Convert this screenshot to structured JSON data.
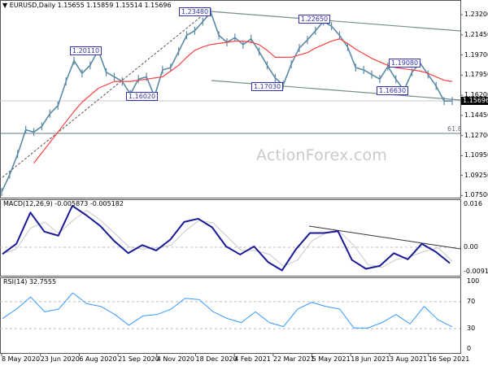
{
  "header": {
    "symbol": "EURUSD,Daily",
    "open": "1.15655",
    "high": "1.15859",
    "low": "1.15514",
    "close": "1.15696"
  },
  "watermark": "ActionForex.com",
  "current_price_label": "1.15696",
  "fib_label": "61.8",
  "annotations": {
    "a1": "1.20110",
    "a2": "1.16020",
    "a3": "1.23480",
    "a4": "1.17030",
    "a5": "1.22650",
    "a6": "1.19080",
    "a7": "1.16630"
  },
  "macd_label": "MACD(12,26,9) -0.005873 -0.005182",
  "rsi_label": "RSI(14) 32.7555",
  "colors": {
    "price": "#5b8aa6",
    "ma": "#ff4040",
    "macd": "#1a1a99",
    "signal": "#c8c8c8",
    "rsi": "#3399ff",
    "annotation": "#3333aa"
  },
  "chart_data": [
    {
      "type": "line",
      "title": "EURUSD,Daily",
      "ylim": [
        1.075,
        1.232
      ],
      "y_ticks": [
        "1.23200",
        "1.21450",
        "1.19700",
        "1.17950",
        "1.16200",
        "1.14450",
        "1.12700",
        "1.10950",
        "1.09250",
        "1.07500"
      ],
      "x_ticks": [
        "8 May 2020",
        "23 Jun 2020",
        "6 Aug 2020",
        "21 Sep 2020",
        "4 Nov 2020",
        "18 Dec 2020",
        "4 Feb 2021",
        "22 Mar 2021",
        "5 May 2021",
        "18 Jun 2021",
        "3 Aug 2021",
        "16 Sep 2021"
      ],
      "price": [
        1.078,
        1.093,
        1.111,
        1.132,
        1.13,
        1.135,
        1.146,
        1.153,
        1.174,
        1.192,
        1.181,
        1.188,
        1.201,
        1.182,
        1.178,
        1.174,
        1.163,
        1.176,
        1.178,
        1.161,
        1.184,
        1.186,
        1.2,
        1.214,
        1.218,
        1.226,
        1.234,
        1.214,
        1.208,
        1.212,
        1.206,
        1.211,
        1.2,
        1.188,
        1.177,
        1.171,
        1.189,
        1.203,
        1.21,
        1.218,
        1.226,
        1.222,
        1.214,
        1.204,
        1.186,
        1.184,
        1.18,
        1.176,
        1.187,
        1.176,
        1.1663,
        1.182,
        1.19,
        1.18,
        1.17,
        1.157,
        1.157
      ],
      "moving_average": [
        null,
        null,
        null,
        null,
        1.103,
        1.112,
        1.121,
        1.13,
        1.139,
        1.148,
        1.156,
        1.162,
        1.168,
        1.171,
        1.174,
        1.174,
        1.174,
        1.175,
        1.176,
        1.177,
        1.178,
        1.183,
        1.188,
        1.195,
        1.201,
        1.204,
        1.206,
        1.207,
        1.208,
        1.209,
        1.209,
        1.208,
        1.206,
        1.201,
        1.195,
        1.195,
        1.195,
        1.197,
        1.199,
        1.203,
        1.206,
        1.209,
        1.211,
        1.207,
        1.202,
        1.198,
        1.194,
        1.191,
        1.188,
        1.186,
        1.185,
        1.184,
        1.183,
        1.181,
        1.178,
        1.175,
        1.174
      ],
      "fib_level": "61.8"
    },
    {
      "type": "line",
      "title": "MACD(12,26,9) -0.005873 -0.005182",
      "ylim": [
        -0.009116,
        0.016
      ],
      "y_ticks": [
        "0.016",
        "0.00",
        "-0.009116"
      ],
      "macd": [
        -0.0025,
        0.0013,
        0.0129,
        0.0058,
        0.0043,
        0.0154,
        0.0119,
        0.0079,
        0.0023,
        -0.0022,
        0.0008,
        -0.0012,
        0.0028,
        0.0094,
        0.0106,
        0.0074,
        0.0003,
        -0.0027,
        0.0003,
        -0.0055,
        -0.0086,
        -0.0007,
        0.0053,
        0.0053,
        0.006,
        -0.0047,
        -0.008,
        -0.0069,
        -0.0022,
        -0.0045,
        0.0013,
        -0.0017,
        -0.0059
      ],
      "signal": [
        -0.0025,
        -0.0006,
        0.0071,
        0.0094,
        0.0051,
        0.0099,
        0.0137,
        0.0099,
        0.0051,
        0.0001,
        -0.0007,
        -0.0002,
        0.0008,
        0.0061,
        0.01,
        0.009,
        0.0039,
        -0.0012,
        -0.0012,
        -0.0026,
        -0.0071,
        -0.0047,
        0.0023,
        0.0053,
        0.0057,
        0.0007,
        -0.0064,
        -0.0075,
        -0.0046,
        -0.0034,
        -0.0016,
        -0.0002,
        -0.0052
      ]
    },
    {
      "type": "line",
      "title": "RSI(14) 32.7555",
      "ylim": [
        0,
        100
      ],
      "y_ticks": [
        "100",
        "70",
        "30",
        "0"
      ],
      "rsi": [
        45,
        59,
        77,
        55,
        59,
        83,
        67,
        63,
        51,
        35,
        49,
        51,
        59,
        75,
        73,
        55,
        45,
        39,
        55,
        39,
        33,
        59,
        69,
        63,
        59,
        31,
        31,
        39,
        51,
        37,
        63,
        43,
        32.76
      ]
    }
  ]
}
